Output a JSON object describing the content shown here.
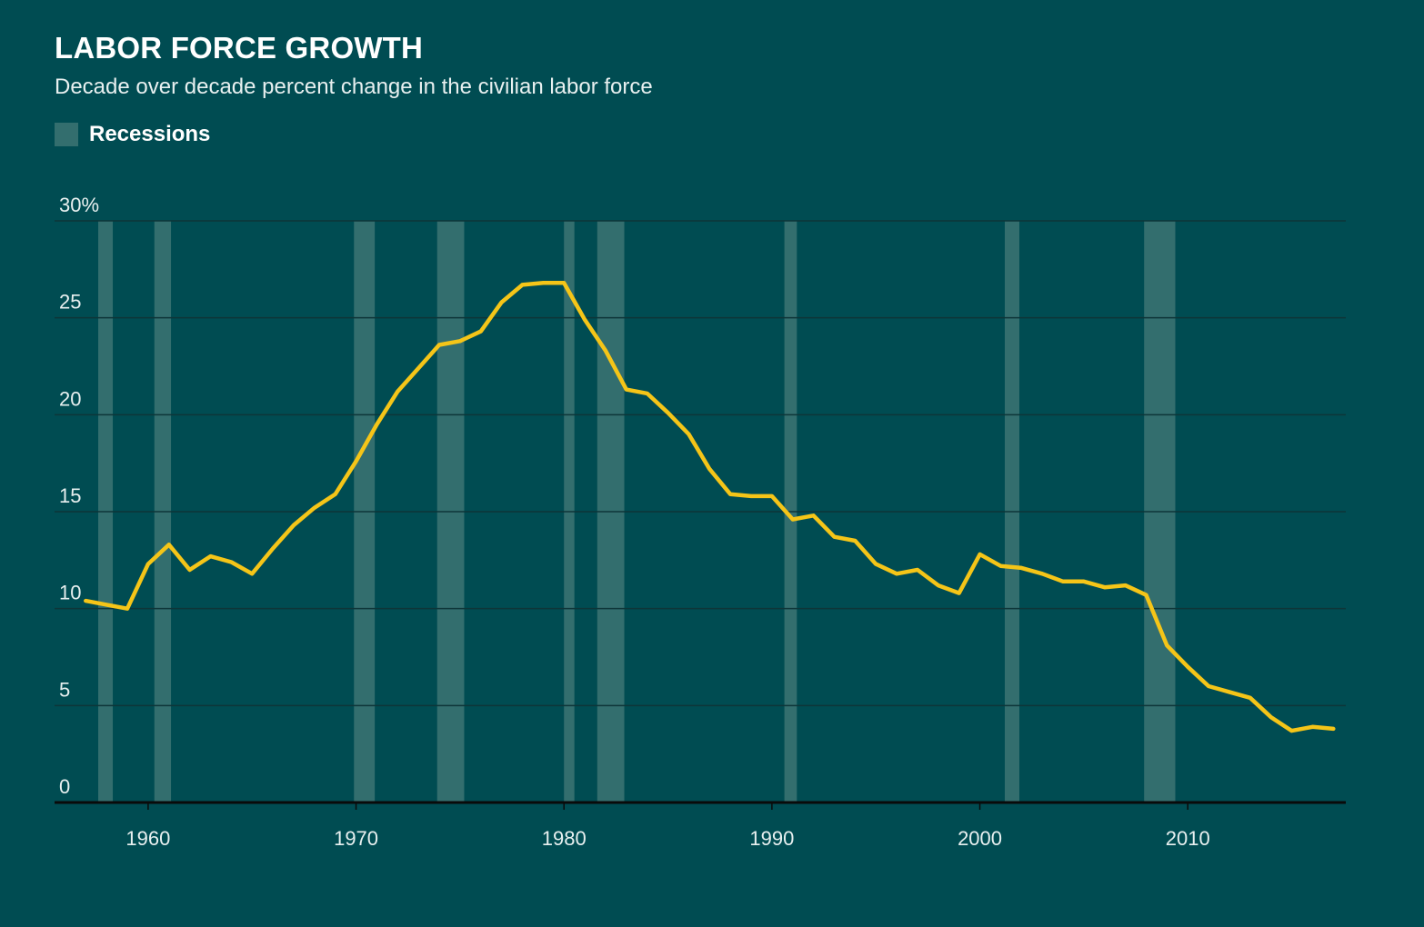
{
  "header": {
    "title": "LABOR FORCE GROWTH",
    "subtitle": "Decade over decade percent change in the civilian labor force"
  },
  "legend": {
    "recessions_label": "Recessions"
  },
  "colors": {
    "background": "#004c52",
    "line": "#f5c518",
    "recession_band": "#336e6e",
    "gridline": "#0e3538",
    "axis": "#0a0a0a"
  },
  "chart_data": {
    "type": "line",
    "title": "LABOR FORCE GROWTH",
    "subtitle": "Decade over decade percent change in the civilian labor force",
    "xlabel": "",
    "ylabel": "",
    "xlim": [
      1955.5,
      2017.6
    ],
    "ylim": [
      0,
      30
    ],
    "x_ticks": [
      1960,
      1970,
      1980,
      1990,
      2000,
      2010
    ],
    "y_ticks": [
      0,
      5,
      10,
      15,
      20,
      25,
      30
    ],
    "y_tick_labels": [
      "0",
      "5",
      "10",
      "15",
      "20",
      "25",
      "30%"
    ],
    "grid": true,
    "legend_position": "top-left",
    "recessions": [
      [
        1957.6,
        1958.3
      ],
      [
        1960.3,
        1961.1
      ],
      [
        1969.9,
        1970.9
      ],
      [
        1973.9,
        1975.2
      ],
      [
        1980.0,
        1980.5
      ],
      [
        1981.6,
        1982.9
      ],
      [
        1990.6,
        1991.2
      ],
      [
        2001.2,
        2001.9
      ],
      [
        2007.9,
        2009.4
      ]
    ],
    "series": [
      {
        "name": "",
        "x": [
          1957,
          1958,
          1959,
          1960,
          1961,
          1962,
          1963,
          1964,
          1965,
          1966,
          1967,
          1968,
          1969,
          1970,
          1971,
          1972,
          1973,
          1974,
          1975,
          1976,
          1977,
          1978,
          1979,
          1980,
          1981,
          1982,
          1983,
          1984,
          1985,
          1986,
          1987,
          1988,
          1989,
          1990,
          1991,
          1992,
          1993,
          1994,
          1995,
          1996,
          1997,
          1998,
          1999,
          2000,
          2001,
          2002,
          2003,
          2004,
          2005,
          2006,
          2007,
          2008,
          2009,
          2010,
          2011,
          2012,
          2013,
          2014,
          2015,
          2016,
          2017
        ],
        "values": [
          10.4,
          10.2,
          10.0,
          12.3,
          13.3,
          12.0,
          12.7,
          12.4,
          11.8,
          13.1,
          14.3,
          15.2,
          15.9,
          17.6,
          19.5,
          21.2,
          22.4,
          23.6,
          23.8,
          24.3,
          25.8,
          26.7,
          26.8,
          26.8,
          24.9,
          23.3,
          21.3,
          21.1,
          20.1,
          19.0,
          17.2,
          15.9,
          15.8,
          15.8,
          14.6,
          14.8,
          13.7,
          13.5,
          12.3,
          11.8,
          12.0,
          11.2,
          10.8,
          12.8,
          12.2,
          12.1,
          11.8,
          11.4,
          11.4,
          11.1,
          11.2,
          10.7,
          8.1,
          7.0,
          6.0,
          5.7,
          5.4,
          4.4,
          3.7,
          3.9,
          3.8
        ]
      }
    ]
  }
}
